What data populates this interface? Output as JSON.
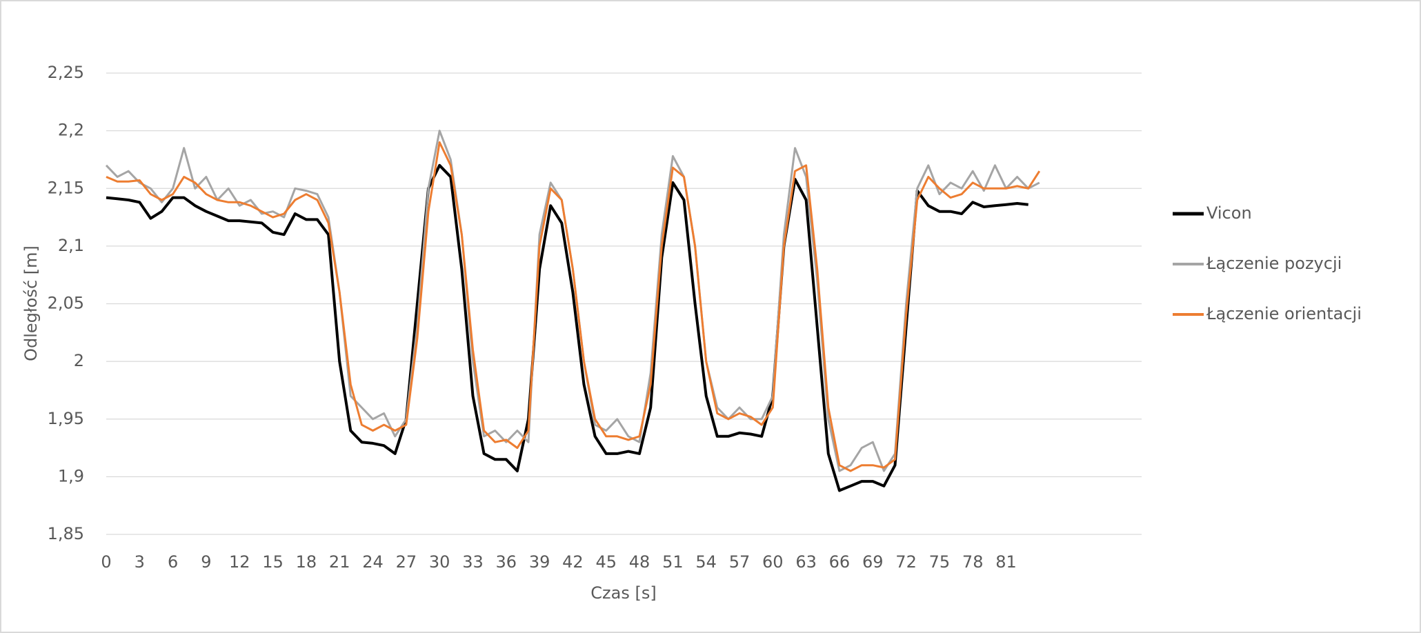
{
  "chart_data": {
    "type": "line",
    "x_label": "Czas [s]",
    "y_label": "Odległość [m]",
    "x": [
      0,
      1,
      2,
      3,
      4,
      5,
      6,
      7,
      8,
      9,
      10,
      11,
      12,
      13,
      14,
      15,
      16,
      17,
      18,
      19,
      20,
      21,
      22,
      23,
      24,
      25,
      26,
      27,
      28,
      29,
      30,
      31,
      32,
      33,
      34,
      35,
      36,
      37,
      38,
      39,
      40,
      41,
      42,
      43,
      44,
      45,
      46,
      47,
      48,
      49,
      50,
      51,
      52,
      53,
      54,
      55,
      56,
      57,
      58,
      59,
      60,
      61,
      62,
      63,
      64,
      65,
      66,
      67,
      68,
      69,
      70,
      71,
      72,
      73,
      74,
      75,
      76,
      77,
      78,
      79,
      80,
      81,
      82,
      83,
      84
    ],
    "series": [
      {
        "name": "Vicon",
        "color": "#000000",
        "width": 4,
        "values": [
          2.142,
          2.141,
          2.14,
          2.138,
          2.124,
          2.13,
          2.142,
          2.142,
          2.135,
          2.13,
          2.126,
          2.122,
          2.122,
          2.121,
          2.12,
          2.112,
          2.11,
          2.128,
          2.123,
          2.123,
          2.11,
          2.0,
          1.94,
          1.93,
          1.929,
          1.927,
          1.92,
          1.95,
          2.05,
          2.15,
          2.17,
          2.16,
          2.08,
          1.97,
          1.92,
          1.915,
          1.915,
          1.905,
          1.95,
          2.08,
          2.135,
          2.12,
          2.06,
          1.98,
          1.935,
          1.92,
          1.92,
          1.922,
          1.92,
          1.96,
          2.09,
          2.155,
          2.14,
          2.05,
          1.97,
          1.935,
          1.935,
          1.938,
          1.937,
          1.935,
          1.97,
          2.1,
          2.158,
          2.14,
          2.03,
          1.92,
          1.888,
          1.892,
          1.896,
          1.896,
          1.892,
          1.91,
          2.03,
          2.148,
          2.135,
          2.13,
          2.13,
          2.128,
          2.138,
          2.134,
          2.135,
          2.136,
          2.137,
          2.136,
          null
        ]
      },
      {
        "name": "Łączenie pozycji",
        "color": "#a5a5a5",
        "width": 3,
        "values": [
          2.17,
          2.16,
          2.165,
          2.155,
          2.15,
          2.138,
          2.15,
          2.185,
          2.15,
          2.16,
          2.14,
          2.15,
          2.135,
          2.14,
          2.128,
          2.13,
          2.125,
          2.15,
          2.148,
          2.145,
          2.125,
          2.06,
          1.97,
          1.96,
          1.95,
          1.955,
          1.935,
          1.95,
          2.03,
          2.15,
          2.2,
          2.175,
          2.11,
          2.0,
          1.935,
          1.94,
          1.93,
          1.94,
          1.93,
          2.11,
          2.155,
          2.14,
          2.08,
          2.0,
          1.945,
          1.94,
          1.95,
          1.935,
          1.93,
          1.99,
          2.11,
          2.178,
          2.16,
          2.1,
          2.0,
          1.96,
          1.95,
          1.96,
          1.95,
          1.95,
          1.97,
          2.11,
          2.185,
          2.16,
          2.07,
          1.95,
          1.905,
          1.91,
          1.925,
          1.93,
          1.905,
          1.92,
          2.05,
          2.15,
          2.17,
          2.145,
          2.155,
          2.15,
          2.165,
          2.148,
          2.17,
          2.15,
          2.16,
          2.15,
          2.155
        ]
      },
      {
        "name": "Łączenie orientacji",
        "color": "#ed7d31",
        "width": 3,
        "values": [
          2.16,
          2.156,
          2.156,
          2.157,
          2.145,
          2.14,
          2.145,
          2.16,
          2.155,
          2.145,
          2.14,
          2.138,
          2.138,
          2.135,
          2.13,
          2.125,
          2.128,
          2.14,
          2.145,
          2.14,
          2.12,
          2.06,
          1.98,
          1.945,
          1.94,
          1.945,
          1.94,
          1.945,
          2.02,
          2.13,
          2.19,
          2.17,
          2.11,
          2.01,
          1.94,
          1.93,
          1.932,
          1.925,
          1.94,
          2.1,
          2.15,
          2.14,
          2.08,
          2.0,
          1.95,
          1.935,
          1.935,
          1.932,
          1.935,
          1.98,
          2.1,
          2.168,
          2.16,
          2.1,
          2.0,
          1.955,
          1.95,
          1.955,
          1.952,
          1.945,
          1.96,
          2.1,
          2.165,
          2.17,
          2.08,
          1.96,
          1.91,
          1.905,
          1.91,
          1.91,
          1.908,
          1.915,
          2.04,
          2.14,
          2.16,
          2.15,
          2.142,
          2.145,
          2.155,
          2.15,
          2.15,
          2.15,
          2.152,
          2.15,
          2.165
        ]
      }
    ],
    "xlim": [
      0,
      93.2
    ],
    "xticks": [
      0,
      3,
      6,
      9,
      12,
      15,
      18,
      21,
      24,
      27,
      30,
      33,
      36,
      39,
      42,
      45,
      48,
      51,
      54,
      57,
      60,
      63,
      66,
      69,
      72,
      75,
      78,
      81
    ],
    "ylim": [
      1.85,
      2.25
    ],
    "yticks": [
      {
        "value": 1.85,
        "label": "1,85"
      },
      {
        "value": 1.9,
        "label": "1,9"
      },
      {
        "value": 1.95,
        "label": "1,95"
      },
      {
        "value": 2,
        "label": "2"
      },
      {
        "value": 2.05,
        "label": "2,05"
      },
      {
        "value": 2.1,
        "label": "2,1"
      },
      {
        "value": 2.15,
        "label": "2,15"
      },
      {
        "value": 2.2,
        "label": "2,2"
      },
      {
        "value": 2.25,
        "label": "2,25"
      }
    ],
    "grid": true,
    "legend": "right"
  }
}
